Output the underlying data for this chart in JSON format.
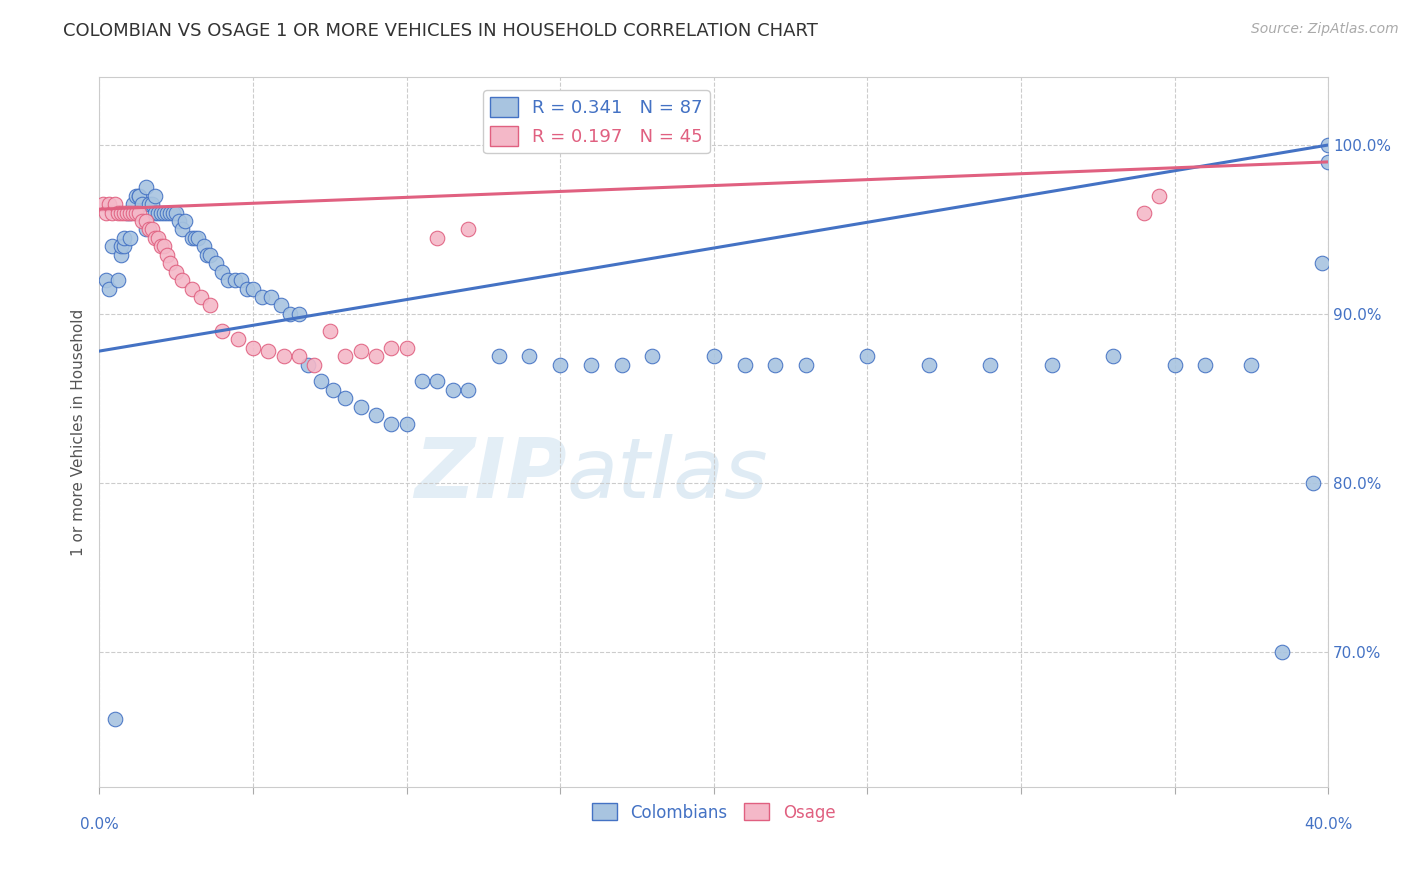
{
  "title": "COLOMBIAN VS OSAGE 1 OR MORE VEHICLES IN HOUSEHOLD CORRELATION CHART",
  "source": "Source: ZipAtlas.com",
  "ylabel": "1 or more Vehicles in Household",
  "y_tick_values": [
    0.7,
    0.8,
    0.9,
    1.0
  ],
  "y_tick_labels": [
    "70.0%",
    "80.0%",
    "90.0%",
    "100.0%"
  ],
  "x_min": 0.0,
  "x_max": 0.4,
  "y_min": 0.62,
  "y_max": 1.04,
  "colombians_R": 0.341,
  "colombians_N": 87,
  "osage_R": 0.197,
  "osage_N": 45,
  "legend_label_colombians": "Colombians",
  "legend_label_osage": "Osage",
  "color_colombians": "#a8c4e0",
  "color_osage": "#f4b8c8",
  "color_line_colombians": "#4472c4",
  "color_line_osage": "#e06080",
  "color_ticks": "#4472c4",
  "color_grid": "#cccccc",
  "color_title": "#333333",
  "color_source": "#aaaaaa",
  "title_fontsize": 13,
  "source_fontsize": 10,
  "tick_fontsize": 11,
  "ylabel_fontsize": 11,
  "colombians_x": [
    0.002,
    0.003,
    0.004,
    0.005,
    0.006,
    0.007,
    0.007,
    0.008,
    0.008,
    0.009,
    0.01,
    0.01,
    0.011,
    0.012,
    0.012,
    0.013,
    0.013,
    0.014,
    0.015,
    0.015,
    0.016,
    0.017,
    0.018,
    0.018,
    0.019,
    0.02,
    0.021,
    0.022,
    0.023,
    0.024,
    0.025,
    0.026,
    0.027,
    0.028,
    0.03,
    0.031,
    0.032,
    0.034,
    0.035,
    0.036,
    0.038,
    0.04,
    0.042,
    0.044,
    0.046,
    0.048,
    0.05,
    0.053,
    0.056,
    0.059,
    0.062,
    0.065,
    0.068,
    0.072,
    0.076,
    0.08,
    0.085,
    0.09,
    0.095,
    0.1,
    0.105,
    0.11,
    0.115,
    0.12,
    0.13,
    0.14,
    0.15,
    0.16,
    0.17,
    0.18,
    0.2,
    0.21,
    0.22,
    0.23,
    0.25,
    0.27,
    0.29,
    0.31,
    0.33,
    0.35,
    0.36,
    0.375,
    0.385,
    0.395,
    0.398,
    0.4,
    0.4
  ],
  "colombians_y": [
    0.92,
    0.915,
    0.94,
    0.66,
    0.92,
    0.935,
    0.94,
    0.94,
    0.945,
    0.96,
    0.96,
    0.945,
    0.965,
    0.96,
    0.97,
    0.97,
    0.97,
    0.965,
    0.95,
    0.975,
    0.965,
    0.965,
    0.96,
    0.97,
    0.96,
    0.96,
    0.96,
    0.96,
    0.96,
    0.96,
    0.96,
    0.955,
    0.95,
    0.955,
    0.945,
    0.945,
    0.945,
    0.94,
    0.935,
    0.935,
    0.93,
    0.925,
    0.92,
    0.92,
    0.92,
    0.915,
    0.915,
    0.91,
    0.91,
    0.905,
    0.9,
    0.9,
    0.87,
    0.86,
    0.855,
    0.85,
    0.845,
    0.84,
    0.835,
    0.835,
    0.86,
    0.86,
    0.855,
    0.855,
    0.875,
    0.875,
    0.87,
    0.87,
    0.87,
    0.875,
    0.875,
    0.87,
    0.87,
    0.87,
    0.875,
    0.87,
    0.87,
    0.87,
    0.875,
    0.87,
    0.87,
    0.87,
    0.7,
    0.8,
    0.93,
    0.99,
    1.0
  ],
  "osage_x": [
    0.001,
    0.002,
    0.003,
    0.004,
    0.005,
    0.006,
    0.007,
    0.008,
    0.009,
    0.01,
    0.011,
    0.012,
    0.013,
    0.014,
    0.015,
    0.016,
    0.017,
    0.018,
    0.019,
    0.02,
    0.021,
    0.022,
    0.023,
    0.025,
    0.027,
    0.03,
    0.033,
    0.036,
    0.04,
    0.045,
    0.05,
    0.055,
    0.06,
    0.065,
    0.07,
    0.075,
    0.08,
    0.085,
    0.09,
    0.095,
    0.1,
    0.11,
    0.12,
    0.34,
    0.345
  ],
  "osage_y": [
    0.965,
    0.96,
    0.965,
    0.96,
    0.965,
    0.96,
    0.96,
    0.96,
    0.96,
    0.96,
    0.96,
    0.96,
    0.96,
    0.955,
    0.955,
    0.95,
    0.95,
    0.945,
    0.945,
    0.94,
    0.94,
    0.935,
    0.93,
    0.925,
    0.92,
    0.915,
    0.91,
    0.905,
    0.89,
    0.885,
    0.88,
    0.878,
    0.875,
    0.875,
    0.87,
    0.89,
    0.875,
    0.878,
    0.875,
    0.88,
    0.88,
    0.945,
    0.95,
    0.96,
    0.97
  ],
  "col_trend_x": [
    0.0,
    0.4
  ],
  "col_trend_y": [
    0.878,
    1.0
  ],
  "osa_trend_x": [
    0.0,
    0.4
  ],
  "osa_trend_y": [
    0.962,
    0.99
  ]
}
